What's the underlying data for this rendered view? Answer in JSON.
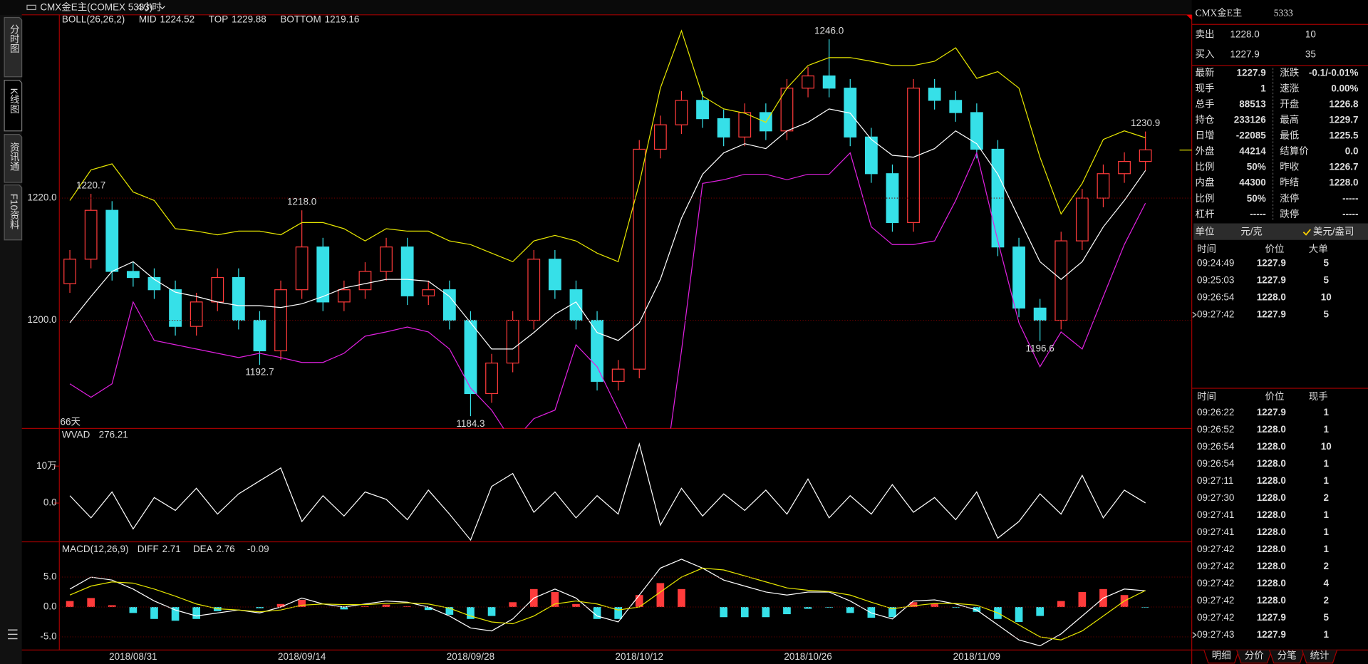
{
  "topbar": {
    "instrument": "CMX金E主(COMEX 5333)",
    "period": "4小时"
  },
  "sidebar": {
    "tabs": [
      "分时图",
      "K线图",
      "资讯通",
      "F10资料"
    ]
  },
  "kline": {
    "legend_title": "BOLL(26,26,2)",
    "period_label": "66天",
    "categories": [
      null,
      null,
      null,
      "2018/08/31",
      null,
      null,
      null,
      null,
      null,
      null,
      null,
      "2018/09/14",
      null,
      null,
      null,
      null,
      null,
      null,
      null,
      "2018/09/28",
      null,
      null,
      null,
      null,
      null,
      null,
      null,
      "2018/10/12",
      null,
      null,
      null,
      null,
      null,
      null,
      null,
      "2018/10/26",
      null,
      null,
      null,
      null,
      null,
      null,
      null,
      "2018/11/09",
      null,
      null,
      null,
      null,
      null,
      null,
      null,
      null
    ],
    "open": [
      1206,
      1210,
      1218,
      1208,
      1207,
      1205,
      1199,
      1203,
      1207,
      1200,
      1195,
      1205,
      1212,
      1203,
      1205,
      1208,
      1212,
      1204,
      1205,
      1200,
      1188,
      1193,
      1200,
      1210,
      1205,
      1200,
      1190,
      1192,
      1228,
      1232,
      1236,
      1233,
      1230,
      1234,
      1231,
      1238,
      1240,
      1238,
      1230,
      1224,
      1216,
      1238,
      1236,
      1234,
      1228,
      1212,
      1202,
      1200,
      1213,
      1220,
      1224,
      1226
    ],
    "high": [
      1211.5,
      1220.7,
      1219.5,
      1209.5,
      1208.5,
      1206.5,
      1204.5,
      1208.5,
      1208.5,
      1201.5,
      1206.5,
      1218.0,
      1213.5,
      1206.5,
      1209.5,
      1213.5,
      1213.5,
      1206.5,
      1206.5,
      1201.5,
      1194.5,
      1201.5,
      1211.5,
      1211.5,
      1206.5,
      1201.5,
      1193.5,
      1229.5,
      1233.5,
      1237.5,
      1237.5,
      1234.5,
      1235.5,
      1235.5,
      1239.5,
      1241.5,
      1246.0,
      1239.5,
      1231.5,
      1225.5,
      1239.5,
      1239.5,
      1237.5,
      1235.5,
      1229.5,
      1213.5,
      1203.5,
      1214.5,
      1221.5,
      1225.5,
      1227.5,
      1230.9
    ],
    "low": [
      1204.5,
      1208.5,
      1206.5,
      1205.5,
      1203.5,
      1197.5,
      1197.5,
      1201.5,
      1198.5,
      1192.7,
      1193.5,
      1203.5,
      1201.5,
      1201.5,
      1203.5,
      1206.5,
      1202.5,
      1202.5,
      1198.5,
      1184.3,
      1186.5,
      1191.5,
      1198.5,
      1203.5,
      1198.5,
      1188.5,
      1188.5,
      1190.5,
      1226.5,
      1230.5,
      1231.5,
      1228.5,
      1228.5,
      1229.5,
      1229.5,
      1236.5,
      1236.5,
      1228.5,
      1222.5,
      1214.5,
      1214.5,
      1234.5,
      1232.5,
      1226.5,
      1210.5,
      1200.5,
      1196.6,
      1198.5,
      1211.5,
      1218.5,
      1222.5,
      1224.5
    ],
    "close": [
      1210,
      1218,
      1208,
      1207,
      1205,
      1199,
      1203,
      1207,
      1200,
      1195,
      1205,
      1212,
      1203,
      1205,
      1208,
      1212,
      1204,
      1205,
      1200,
      1188,
      1193,
      1200,
      1210,
      1205,
      1200,
      1190,
      1192,
      1228,
      1232,
      1236,
      1233,
      1230,
      1234,
      1231,
      1238,
      1240,
      1238,
      1230,
      1224,
      1216,
      1238,
      1236,
      1234,
      1228,
      1212,
      1202,
      1200,
      1213,
      1220,
      1224,
      1226,
      1227.9
    ],
    "up_color": "#ff3b3b",
    "down_color": "#36e0e8",
    "boll": [
      {
        "name": "MID",
        "color": "#ffffff",
        "values": [
          1199.6,
          1203.9,
          1208,
          1209.6,
          1206.7,
          1204.6,
          1203.9,
          1203,
          1202.4,
          1202.4,
          1202.1,
          1202.7,
          1203.9,
          1205.3,
          1206,
          1206.7,
          1206.7,
          1206.4,
          1203.9,
          1199.6,
          1195.3,
          1195.3,
          1198,
          1201,
          1203,
          1198,
          1196.7,
          1199.6,
          1206.7,
          1216.7,
          1223.9,
          1227.4,
          1228.9,
          1228.1,
          1231,
          1232.4,
          1234.6,
          1233.9,
          1229.6,
          1227,
          1226.7,
          1228.1,
          1231,
          1228.9,
          1223.9,
          1216.7,
          1209.6,
          1206.7,
          1209.6,
          1215.3,
          1219.6,
          1224.52
        ]
      },
      {
        "name": "TOP",
        "color": "#e6e600",
        "values": [
          1219.6,
          1224.6,
          1225.6,
          1221,
          1219.6,
          1215,
          1214.6,
          1214,
          1214.6,
          1214.6,
          1214,
          1216,
          1216,
          1215,
          1213,
          1215,
          1214.6,
          1214.6,
          1213,
          1212.4,
          1211,
          1209.6,
          1213,
          1213.9,
          1213,
          1211,
          1209.6,
          1222.4,
          1238,
          1247.4,
          1236.7,
          1234.6,
          1233.9,
          1232.4,
          1238,
          1241.7,
          1243,
          1243,
          1242.4,
          1241.7,
          1241.7,
          1242.4,
          1244.6,
          1239.6,
          1240.7,
          1238,
          1226.7,
          1217.4,
          1222.4,
          1229.6,
          1231,
          1229.88
        ]
      },
      {
        "name": "BOTTOM",
        "color": "#e020e0",
        "values": [
          1189.6,
          1187.4,
          1189.6,
          1203,
          1196.7,
          1196,
          1195.3,
          1194.6,
          1193.9,
          1194.6,
          1193.9,
          1193.1,
          1193.1,
          1194.6,
          1197.4,
          1198.1,
          1198.9,
          1198.1,
          1195.3,
          1188.9,
          1185.3,
          1180,
          1183.9,
          1185.3,
          1196,
          1192.4,
          1185.3,
          1178,
          1170,
          1195,
          1222.4,
          1223,
          1223.9,
          1223.9,
          1223,
          1223.9,
          1223.9,
          1227.4,
          1215.3,
          1212.4,
          1212.4,
          1213,
          1219.6,
          1227.4,
          1213,
          1199.6,
          1192.4,
          1198.1,
          1195.3,
          1203.9,
          1212.4,
          1219.16
        ]
      }
    ],
    "ylim": [
      1182.3,
      1250
    ],
    "yticks": [
      {
        "value": 1220,
        "label": "1220.0"
      },
      {
        "value": 1200,
        "label": "1200.0"
      }
    ],
    "annotations": [
      {
        "x": 1,
        "value": 1220.7,
        "label": "1220.7",
        "color": "#ff3b3b",
        "side": "high"
      },
      {
        "x": 9,
        "value": 1192.7,
        "label": "1192.7",
        "color": "#36e0e8",
        "side": "low"
      },
      {
        "x": 11,
        "value": 1218.0,
        "label": "1218.0",
        "color": "#ff3b3b",
        "side": "high"
      },
      {
        "x": 19,
        "value": 1184.3,
        "label": "1184.3",
        "color": "#36e0e8",
        "side": "low"
      },
      {
        "x": 36,
        "value": 1246.0,
        "label": "1246.0",
        "color": "#ff3b3b",
        "side": "high"
      },
      {
        "x": 46,
        "value": 1196.6,
        "label": "1196.6",
        "color": "#36e0e8",
        "side": "low"
      },
      {
        "x": 51,
        "value": 1230.9,
        "label": "1230.9",
        "color": "#ff3b3b",
        "side": "high"
      }
    ]
  },
  "wvad": {
    "title": "WVAD",
    "color": "#ffffff",
    "values": [
      20000,
      -40000,
      30000,
      -70000,
      15000,
      -20000,
      40000,
      -30000,
      25000,
      60000,
      95000,
      -50000,
      20000,
      -35000,
      30000,
      10000,
      -45000,
      35000,
      -30000,
      -100000,
      45000,
      80000,
      -25000,
      30000,
      -40000,
      20000,
      -30000,
      160000,
      -60000,
      40000,
      -35000,
      25000,
      -20000,
      35000,
      -30000,
      65000,
      -40000,
      20000,
      -30000,
      50000,
      -25000,
      15000,
      -45000,
      30000,
      -95000,
      -50000,
      25000,
      -30000,
      75000,
      -40000,
      35000,
      276.21
    ],
    "ylim": [
      -105000,
      202000
    ],
    "yticks": [
      {
        "value": 100000,
        "label": "10万"
      },
      {
        "value": 0,
        "label": "0.0"
      }
    ]
  },
  "macd": {
    "title": "MACD(12,26,9)",
    "series": [
      {
        "name": "DIFF",
        "color": "#ffffff",
        "values": [
          3,
          5,
          4.5,
          3,
          1,
          -0.5,
          -1.5,
          -1,
          -0.5,
          -1,
          0,
          1.5,
          0.5,
          0,
          0.5,
          1,
          0.8,
          0,
          -1.5,
          -3.5,
          -4,
          -2,
          1.5,
          3,
          1.5,
          -1.5,
          -2.5,
          2,
          6.5,
          8,
          6.5,
          4.5,
          3.5,
          2.5,
          2,
          2.5,
          2.5,
          1,
          -1,
          -2,
          1,
          1.2,
          0.5,
          -0.5,
          -3,
          -5.5,
          -6.5,
          -4.5,
          -1.5,
          1.5,
          3,
          2.71
        ]
      },
      {
        "name": "DEA",
        "color": "#e6e600",
        "values": [
          2,
          3.5,
          4.2,
          4,
          3,
          1.8,
          0.5,
          -0.3,
          -0.5,
          -0.8,
          -0.5,
          0.3,
          0.5,
          0.4,
          0.4,
          0.6,
          0.7,
          0.5,
          -0.2,
          -1.5,
          -2.5,
          -2.8,
          -1.5,
          0.5,
          1,
          0.5,
          -0.5,
          0,
          2.5,
          5,
          6.5,
          6.2,
          5.2,
          4.2,
          3.2,
          2.8,
          2.6,
          2,
          0.8,
          -0.3,
          0.2,
          0.6,
          0.6,
          0.3,
          -1,
          -3,
          -5,
          -5.5,
          -4,
          -1.5,
          1,
          2.76
        ]
      }
    ],
    "histogram": [
      1,
      1.5,
      0.3,
      -1,
      -2,
      -2.3,
      -2,
      -0.7,
      0,
      -0.2,
      0.5,
      1.2,
      0,
      -0.4,
      0.1,
      0.4,
      0.1,
      -0.5,
      -1.3,
      -2,
      -1.5,
      0.8,
      3,
      2.5,
      0.5,
      -2,
      -2,
      2,
      4,
      3,
      0,
      -1.7,
      -1.7,
      -1.7,
      -1.2,
      -0.3,
      -0.1,
      -1,
      -1.8,
      -1.7,
      0.8,
      0.6,
      -0.1,
      -0.8,
      -2,
      -2.5,
      -1.5,
      1,
      2.5,
      3,
      2,
      -0.09
    ],
    "ylim": [
      -7.2,
      10.9
    ],
    "yticks": [
      {
        "value": 5,
        "label": "5.0"
      },
      {
        "value": 0,
        "label": "0.0"
      },
      {
        "value": -5,
        "label": "-5.0"
      }
    ]
  },
  "quote": {
    "name": "CMX金E主",
    "code": "5333",
    "ask": {
      "label": "卖出",
      "price": "1228.0",
      "volume": "10",
      "color": "#ffffff"
    },
    "bid": {
      "label": "买入",
      "price": "1227.9",
      "volume": "35",
      "color": "#2ee62e"
    },
    "rows": [
      [
        {
          "label": "最新",
          "value": "1227.9",
          "color": "#2ee62e"
        },
        {
          "label": "涨跌",
          "value": "-0.1/-0.01%",
          "color": "#2ee62e"
        }
      ],
      [
        {
          "label": "现手",
          "value": "1",
          "color": "#ffff33"
        },
        {
          "label": "速涨",
          "value": "0.00%",
          "color": "#ffffff"
        }
      ],
      [
        {
          "label": "总手",
          "value": "88513",
          "color": "#ffff33"
        },
        {
          "label": "开盘",
          "value": "1226.8",
          "color": "#2ee62e"
        }
      ],
      [
        {
          "label": "持仓",
          "value": "233126",
          "color": "#ffff33"
        },
        {
          "label": "最高",
          "value": "1229.7",
          "color": "#ff3b3b"
        }
      ],
      [
        {
          "label": "日增",
          "value": "-22085",
          "color": "#ffff33"
        },
        {
          "label": "最低",
          "value": "1225.5",
          "color": "#2ee62e"
        }
      ],
      [
        {
          "label": "外盘",
          "value": "44214",
          "color": "#ffffff"
        },
        {
          "label": "结算价",
          "value": "0.0",
          "color": "#ffffff"
        }
      ],
      [
        {
          "label": "比例",
          "value": "50%",
          "color": "#ffff33"
        },
        {
          "label": "昨收",
          "value": "1226.7",
          "color": "#ffffff"
        }
      ],
      [
        {
          "label": "内盘",
          "value": "44300",
          "color": "#ffffff"
        },
        {
          "label": "昨结",
          "value": "1228.0",
          "color": "#ffffff"
        }
      ],
      [
        {
          "label": "比例",
          "value": "50%",
          "color": "#ffff33"
        },
        {
          "label": "涨停",
          "value": "-----",
          "color": "#ff3b3b"
        }
      ],
      [
        {
          "label": "杠杆",
          "value": "-----",
          "color": "#ffff33"
        },
        {
          "label": "跌停",
          "value": "-----",
          "color": "#2ee62e"
        }
      ]
    ],
    "unit": {
      "label": "单位",
      "option1": "元/克",
      "option2": "美元/盎司"
    }
  },
  "big_orders": {
    "headers": [
      "时间",
      "价位",
      "大单"
    ],
    "rows": [
      {
        "time": "09:24:49",
        "price": "1227.9",
        "price_color": "#2ee62e",
        "volume": "5",
        "color": "#ff3b3b"
      },
      {
        "time": "09:25:03",
        "price": "1227.9",
        "price_color": "#2ee62e",
        "volume": "5",
        "color": "#2ee62e"
      },
      {
        "time": "09:26:54",
        "price": "1228.0",
        "price_color": "#ffffff",
        "volume": "10",
        "color": "#ff3b3b"
      },
      {
        "time": "09:27:42",
        "price": "1227.9",
        "price_color": "#2ee62e",
        "volume": "5",
        "color": "#2ee62e"
      }
    ]
  },
  "ticks": {
    "headers": [
      "时间",
      "价位",
      "现手"
    ],
    "rows": [
      {
        "time": "09:26:22",
        "price": "1227.9",
        "price_color": "#2ee62e",
        "volume": "1",
        "color": "#2ee62e"
      },
      {
        "time": "09:26:52",
        "price": "1228.0",
        "price_color": "#ffffff",
        "volume": "1",
        "color": "#ff3b3b"
      },
      {
        "time": "09:26:54",
        "price": "1228.0",
        "price_color": "#ffffff",
        "volume": "10",
        "color": "#ff3b3b"
      },
      {
        "time": "09:26:54",
        "price": "1228.0",
        "price_color": "#ffffff",
        "volume": "1",
        "color": "#ff3b3b"
      },
      {
        "time": "09:27:11",
        "price": "1228.0",
        "price_color": "#ffffff",
        "volume": "1",
        "color": "#ff3b3b"
      },
      {
        "time": "09:27:30",
        "price": "1228.0",
        "price_color": "#ffffff",
        "volume": "2",
        "color": "#ff3b3b"
      },
      {
        "time": "09:27:41",
        "price": "1228.0",
        "price_color": "#ffffff",
        "volume": "1",
        "color": "#ff3b3b"
      },
      {
        "time": "09:27:41",
        "price": "1228.0",
        "price_color": "#ffffff",
        "volume": "1",
        "color": "#ff3b3b"
      },
      {
        "time": "09:27:42",
        "price": "1228.0",
        "price_color": "#ffffff",
        "volume": "1",
        "color": "#ff3b3b"
      },
      {
        "time": "09:27:42",
        "price": "1228.0",
        "price_color": "#ffffff",
        "volume": "2",
        "color": "#2ee62e"
      },
      {
        "time": "09:27:42",
        "price": "1228.0",
        "price_color": "#ffffff",
        "volume": "4",
        "color": "#2ee62e"
      },
      {
        "time": "09:27:42",
        "price": "1228.0",
        "price_color": "#ffffff",
        "volume": "2",
        "color": "#2ee62e"
      },
      {
        "time": "09:27:42",
        "price": "1227.9",
        "price_color": "#2ee62e",
        "volume": "5",
        "color": "#2ee62e"
      },
      {
        "time": "09:27:43",
        "price": "1227.9",
        "price_color": "#2ee62e",
        "volume": "1",
        "color": "#2ee62e"
      }
    ]
  },
  "tabs": [
    "明细",
    "分价",
    "分笔",
    "统计"
  ]
}
